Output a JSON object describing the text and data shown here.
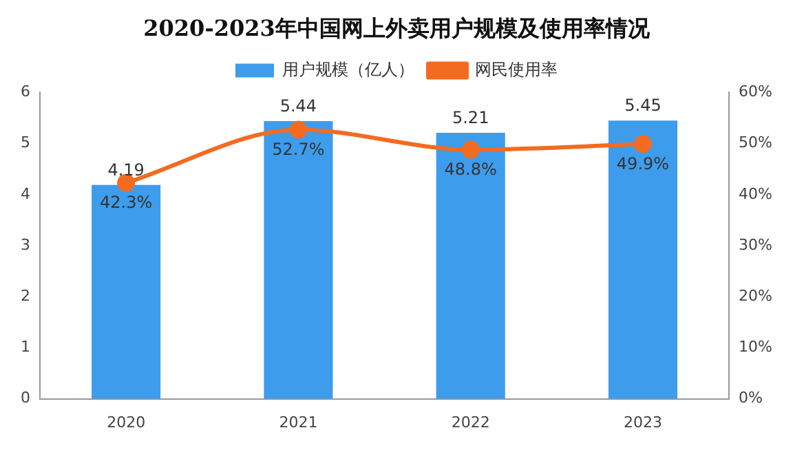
{
  "chart_data": {
    "type": "bar",
    "title": "2020-2023年中国网上外卖用户规模及使用率情况",
    "categories": [
      "2020",
      "2021",
      "2022",
      "2023"
    ],
    "series": [
      {
        "name": "用户规模（亿人）",
        "color": "#3d9cec",
        "values": [
          4.19,
          5.44,
          5.21,
          5.45
        ],
        "value_labels": [
          "4.19",
          "5.44",
          "5.21",
          "5.45"
        ]
      },
      {
        "name": "网民使用率",
        "type": "line",
        "axis": "y2",
        "color": "#f26b21",
        "marker": "circle",
        "values": [
          42.3,
          52.7,
          48.8,
          49.9
        ],
        "value_labels": [
          "42.3%",
          "52.7%",
          "48.8%",
          "49.9%"
        ]
      }
    ],
    "ylim": [
      0,
      6
    ],
    "yticks": [
      0,
      1,
      2,
      3,
      4,
      5,
      6
    ],
    "y2lim": [
      0,
      60
    ],
    "y2ticks": [
      {
        "value": 0,
        "label": "0%"
      },
      {
        "value": 10,
        "label": "10%"
      },
      {
        "value": 20,
        "label": "20%"
      },
      {
        "value": 30,
        "label": "30%"
      },
      {
        "value": 40,
        "label": "40%"
      },
      {
        "value": 50,
        "label": "50%"
      },
      {
        "value": 60,
        "label": "60%"
      }
    ],
    "grid": false,
    "legend": "top"
  }
}
